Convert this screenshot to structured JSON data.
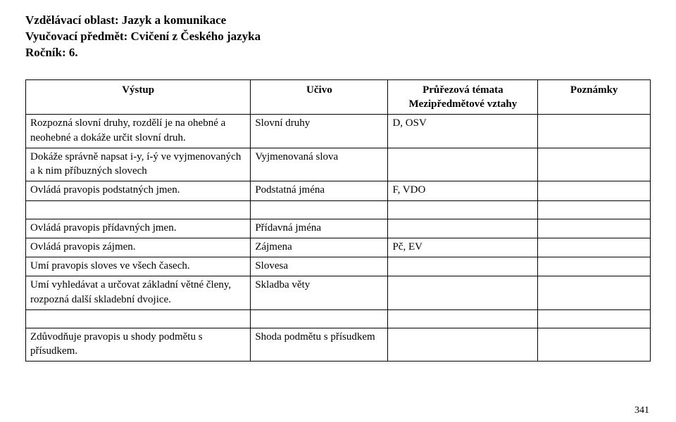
{
  "heading": {
    "line1": "Vzdělávací oblast: Jazyk a komunikace",
    "line2": "Vyučovací předmět: Cvičení z Českého jazyka",
    "line3": "Ročník: 6."
  },
  "columns": {
    "c1": "Výstup",
    "c2": "Učivo",
    "c3_line1": "Průřezová témata",
    "c3_line2": "Mezipředmětové vztahy",
    "c4": "Poznámky"
  },
  "rows": [
    {
      "vystup": "Rozpozná slovní druhy, rozdělí je na ohebné a neohebné a dokáže určit slovní druh.",
      "ucivo": "Slovní druhy",
      "prurez": "D, OSV",
      "pozn": ""
    },
    {
      "vystup": "Dokáže správně napsat i-y, í-ý ve vyjmenovaných a k nim příbuzných slovech",
      "ucivo": "Vyjmenovaná slova",
      "prurez": "",
      "pozn": ""
    },
    {
      "vystup": "Ovládá pravopis podstatných jmen.",
      "ucivo": "Podstatná jména",
      "prurez": "F, VDO",
      "pozn": ""
    }
  ],
  "rows2": [
    {
      "vystup": "Ovládá pravopis přídavných jmen.",
      "ucivo": "Přídavná jména",
      "prurez": "",
      "pozn": ""
    },
    {
      "vystup": "Ovládá pravopis zájmen.",
      "ucivo": " Zájmena",
      "prurez": "Pč, EV",
      "pozn": ""
    },
    {
      "vystup": "Umí pravopis sloves ve všech časech.",
      "ucivo": "Slovesa",
      "prurez": "",
      "pozn": ""
    },
    {
      "vystup": "Umí vyhledávat a určovat základní větné členy, rozpozná další skladební dvojice.",
      "ucivo": "Skladba věty",
      "prurez": "",
      "pozn": ""
    }
  ],
  "rows3": [
    {
      "vystup": "Zdůvodňuje pravopis u shody podmětu s přísudkem.",
      "ucivo": "Shoda podmětu s přísudkem",
      "prurez": "",
      "pozn": ""
    }
  ],
  "page_number": "341"
}
